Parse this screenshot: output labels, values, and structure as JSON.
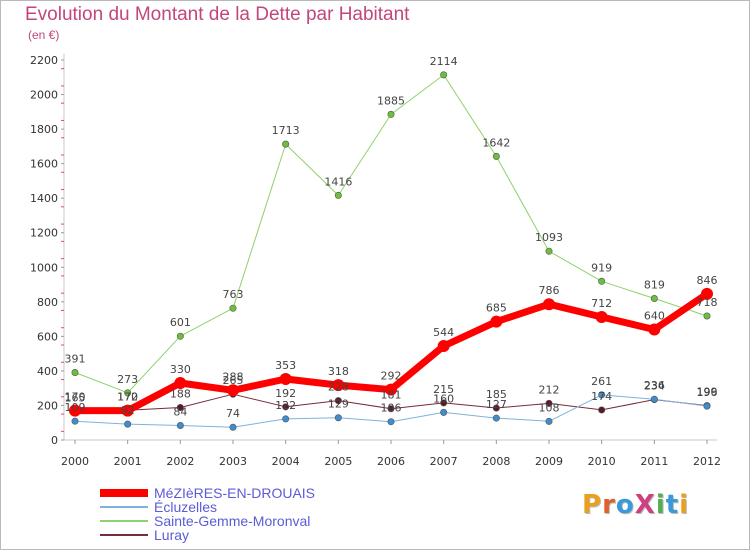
{
  "header": {
    "title": "Evolution du Montant de la Dette par Habitant",
    "subtitle": "(en €)"
  },
  "logo": {
    "text": "ProXiti",
    "colors": [
      "#e8a020",
      "#e06030",
      "#3a9ad9",
      "#d04080",
      "#50b050",
      "#3a9ad9",
      "#e8a020"
    ]
  },
  "chart_data": {
    "type": "line",
    "title": "Evolution du Montant de la Dette par Habitant",
    "subtitle": "(en €)",
    "xlabel": "",
    "ylabel": "",
    "x": [
      "2000",
      "2001",
      "2002",
      "2003",
      "2004",
      "2005",
      "2006",
      "2007",
      "2008",
      "2009",
      "2010",
      "2011",
      "2012"
    ],
    "ylim": [
      0,
      2200
    ],
    "yticks": [
      0,
      200,
      400,
      600,
      800,
      1000,
      1200,
      1400,
      1600,
      1800,
      2000,
      2200
    ],
    "grid": false,
    "legend": "bottom-left",
    "series": [
      {
        "name": "Sainte-Gemme-Moronval",
        "color": "#8fd16a",
        "marker": "#6dbf3b",
        "width": 1,
        "values": [
          391,
          273,
          601,
          763,
          1713,
          1416,
          1885,
          2114,
          1642,
          1093,
          919,
          819,
          718
        ],
        "labels": [
          "391",
          "273",
          "601",
          "763",
          "1713",
          "1416",
          "1885",
          "2114",
          "1642",
          "1093",
          "919",
          "819",
          "718"
        ]
      },
      {
        "name": "Luray",
        "color": "#7a2a3a",
        "marker": "#5a1a28",
        "width": 1,
        "values": [
          165,
          172,
          188,
          265,
          192,
          228,
          181,
          215,
          185,
          212,
          174,
          234,
          199
        ],
        "labels": [
          "165",
          "172",
          "188",
          "265",
          "192",
          "228",
          "181",
          "215",
          "185",
          "212",
          "174",
          "234",
          "199"
        ]
      },
      {
        "name": "Écluzelles",
        "color": "#7fb2dc",
        "marker": "#3d8dd0",
        "width": 1,
        "values": [
          109,
          92,
          84,
          74,
          122,
          129,
          106,
          160,
          127,
          108,
          261,
          236,
          196
        ],
        "labels": [
          "109",
          "92",
          "84",
          "74",
          "122",
          "129",
          "106",
          "160",
          "127",
          "108",
          "261",
          "236",
          "196"
        ]
      },
      {
        "name": "MéZIèRES-EN-DROUAIS",
        "color": "#ff0000",
        "marker": "#ff0000",
        "width": 7,
        "values": [
          170,
          170,
          330,
          288,
          353,
          318,
          292,
          544,
          685,
          786,
          712,
          640,
          846
        ],
        "labels": [
          "170",
          "170",
          "330",
          "288",
          "353",
          "318",
          "292",
          "544",
          "685",
          "786",
          "712",
          "640",
          "846"
        ]
      }
    ],
    "legend_order": [
      "MéZIèRES-EN-DROUAIS",
      "Écluzelles",
      "Sainte-Gemme-Moronval",
      "Luray"
    ]
  }
}
